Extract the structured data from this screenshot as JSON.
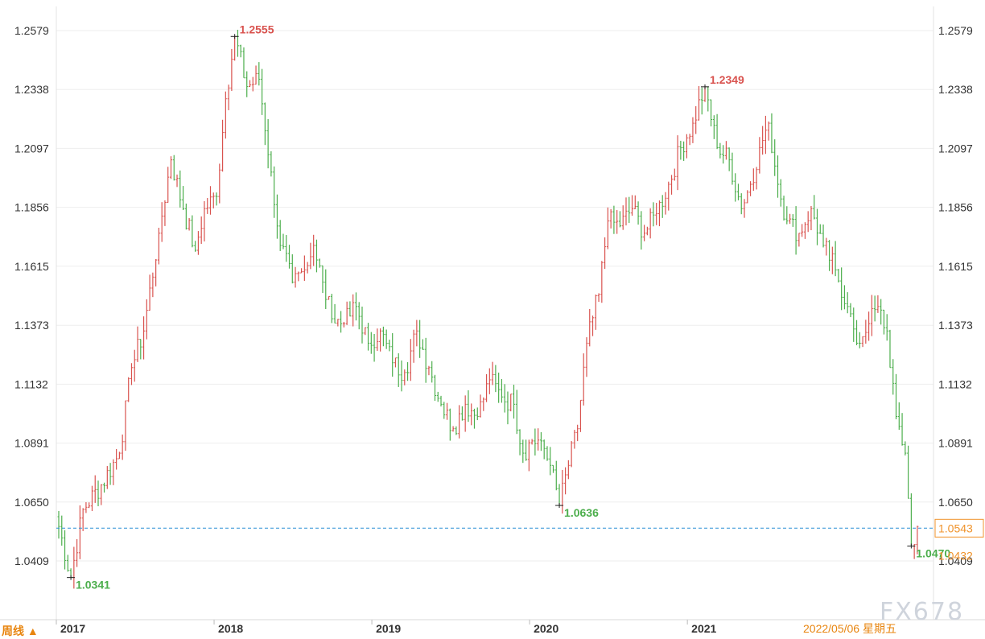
{
  "period_label": "周线 ▲",
  "date_label": "2022/05/06 星期五",
  "watermark": "FX678",
  "colors": {
    "up": "#d9534f",
    "down": "#4cae4c",
    "current_line": "#2a8fd6",
    "badge": "#f0932b",
    "grid": "#eeeeee"
  },
  "chart_data": {
    "type": "ohlc",
    "title": "",
    "xlabel": "",
    "ylabel": "",
    "ylim": [
      1.029,
      1.264
    ],
    "y_ticks": [
      "1.2579",
      "1.2338",
      "1.2097",
      "1.1856",
      "1.1615",
      "1.1373",
      "1.1132",
      "1.0891",
      "1.0650",
      "1.0409"
    ],
    "x_ticks": [
      "2017",
      "2018",
      "2019",
      "2020",
      "2021"
    ],
    "x_tick_index": [
      0,
      52,
      104,
      156,
      208
    ],
    "current_price": "1.0543",
    "right_badge_secondary": "1.0432",
    "annotations": [
      {
        "index": 4,
        "value": 1.0341,
        "label": "1.0341",
        "kind": "low"
      },
      {
        "index": 58,
        "value": 1.2555,
        "label": "1.2555",
        "kind": "high"
      },
      {
        "index": 165,
        "value": 1.0636,
        "label": "1.0636",
        "kind": "low"
      },
      {
        "index": 213,
        "value": 1.2349,
        "label": "1.2349",
        "kind": "high"
      },
      {
        "index": 281,
        "value": 1.047,
        "label": "1.0470",
        "kind": "low"
      }
    ],
    "anchors": [
      [
        0,
        1.055
      ],
      [
        4,
        1.0341
      ],
      [
        8,
        1.062
      ],
      [
        14,
        1.072
      ],
      [
        20,
        1.085
      ],
      [
        24,
        1.12
      ],
      [
        28,
        1.135
      ],
      [
        33,
        1.175
      ],
      [
        37,
        1.205
      ],
      [
        41,
        1.185
      ],
      [
        45,
        1.168
      ],
      [
        48,
        1.185
      ],
      [
        52,
        1.19
      ],
      [
        55,
        1.23
      ],
      [
        58,
        1.2555
      ],
      [
        62,
        1.235
      ],
      [
        66,
        1.238
      ],
      [
        70,
        1.2
      ],
      [
        73,
        1.17
      ],
      [
        77,
        1.155
      ],
      [
        81,
        1.16
      ],
      [
        84,
        1.17
      ],
      [
        87,
        1.155
      ],
      [
        90,
        1.14
      ],
      [
        94,
        1.138
      ],
      [
        98,
        1.145
      ],
      [
        102,
        1.13
      ],
      [
        106,
        1.135
      ],
      [
        110,
        1.122
      ],
      [
        114,
        1.118
      ],
      [
        118,
        1.135
      ],
      [
        122,
        1.12
      ],
      [
        126,
        1.105
      ],
      [
        130,
        1.095
      ],
      [
        134,
        1.105
      ],
      [
        138,
        1.1
      ],
      [
        142,
        1.115
      ],
      [
        146,
        1.108
      ],
      [
        150,
        1.105
      ],
      [
        153,
        1.085
      ],
      [
        156,
        1.09
      ],
      [
        159,
        1.09
      ],
      [
        162,
        1.08
      ],
      [
        165,
        1.0636
      ],
      [
        168,
        1.08
      ],
      [
        171,
        1.095
      ],
      [
        174,
        1.13
      ],
      [
        178,
        1.15
      ],
      [
        181,
        1.18
      ],
      [
        185,
        1.178
      ],
      [
        189,
        1.185
      ],
      [
        193,
        1.175
      ],
      [
        197,
        1.183
      ],
      [
        201,
        1.195
      ],
      [
        205,
        1.21
      ],
      [
        209,
        1.22
      ],
      [
        213,
        1.2349
      ],
      [
        217,
        1.21
      ],
      [
        221,
        1.205
      ],
      [
        225,
        1.185
      ],
      [
        228,
        1.195
      ],
      [
        231,
        1.21
      ],
      [
        234,
        1.22
      ],
      [
        237,
        1.195
      ],
      [
        240,
        1.18
      ],
      [
        244,
        1.175
      ],
      [
        248,
        1.185
      ],
      [
        252,
        1.17
      ],
      [
        256,
        1.16
      ],
      [
        260,
        1.145
      ],
      [
        263,
        1.13
      ],
      [
        267,
        1.138
      ],
      [
        270,
        1.145
      ],
      [
        273,
        1.135
      ],
      [
        276,
        1.1
      ],
      [
        279,
        1.085
      ],
      [
        281,
        1.047
      ],
      [
        283,
        1.055
      ]
    ]
  }
}
